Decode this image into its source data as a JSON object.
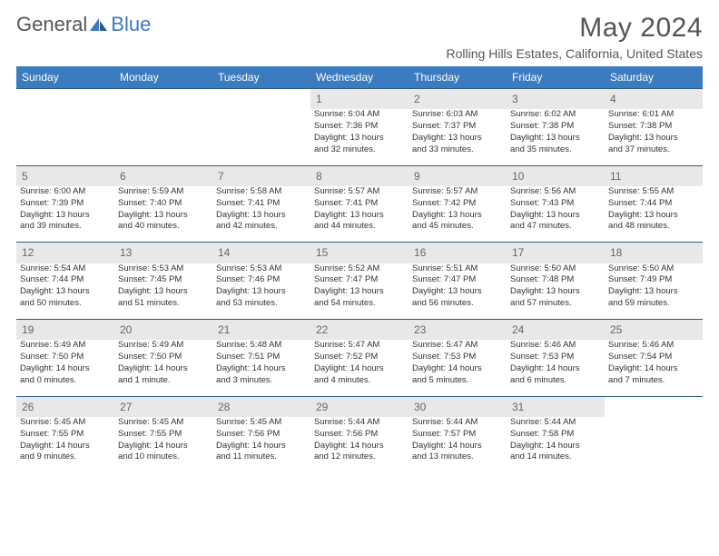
{
  "logo": {
    "part1": "General",
    "part2": "Blue"
  },
  "title": "May 2024",
  "location": "Rolling Hills Estates, California, United States",
  "colors": {
    "header_bg": "#3b7bbf",
    "header_text": "#ffffff",
    "daynum_bg": "#e8e8e8",
    "border": "#2a5a8a",
    "text": "#333333",
    "title_text": "#555555"
  },
  "day_headers": [
    "Sunday",
    "Monday",
    "Tuesday",
    "Wednesday",
    "Thursday",
    "Friday",
    "Saturday"
  ],
  "weeks": [
    {
      "nums": [
        "",
        "",
        "",
        "1",
        "2",
        "3",
        "4"
      ],
      "cells": [
        null,
        null,
        null,
        {
          "sr": "Sunrise: 6:04 AM",
          "ss": "Sunset: 7:36 PM",
          "d1": "Daylight: 13 hours",
          "d2": "and 32 minutes."
        },
        {
          "sr": "Sunrise: 6:03 AM",
          "ss": "Sunset: 7:37 PM",
          "d1": "Daylight: 13 hours",
          "d2": "and 33 minutes."
        },
        {
          "sr": "Sunrise: 6:02 AM",
          "ss": "Sunset: 7:38 PM",
          "d1": "Daylight: 13 hours",
          "d2": "and 35 minutes."
        },
        {
          "sr": "Sunrise: 6:01 AM",
          "ss": "Sunset: 7:38 PM",
          "d1": "Daylight: 13 hours",
          "d2": "and 37 minutes."
        }
      ]
    },
    {
      "nums": [
        "5",
        "6",
        "7",
        "8",
        "9",
        "10",
        "11"
      ],
      "cells": [
        {
          "sr": "Sunrise: 6:00 AM",
          "ss": "Sunset: 7:39 PM",
          "d1": "Daylight: 13 hours",
          "d2": "and 39 minutes."
        },
        {
          "sr": "Sunrise: 5:59 AM",
          "ss": "Sunset: 7:40 PM",
          "d1": "Daylight: 13 hours",
          "d2": "and 40 minutes."
        },
        {
          "sr": "Sunrise: 5:58 AM",
          "ss": "Sunset: 7:41 PM",
          "d1": "Daylight: 13 hours",
          "d2": "and 42 minutes."
        },
        {
          "sr": "Sunrise: 5:57 AM",
          "ss": "Sunset: 7:41 PM",
          "d1": "Daylight: 13 hours",
          "d2": "and 44 minutes."
        },
        {
          "sr": "Sunrise: 5:57 AM",
          "ss": "Sunset: 7:42 PM",
          "d1": "Daylight: 13 hours",
          "d2": "and 45 minutes."
        },
        {
          "sr": "Sunrise: 5:56 AM",
          "ss": "Sunset: 7:43 PM",
          "d1": "Daylight: 13 hours",
          "d2": "and 47 minutes."
        },
        {
          "sr": "Sunrise: 5:55 AM",
          "ss": "Sunset: 7:44 PM",
          "d1": "Daylight: 13 hours",
          "d2": "and 48 minutes."
        }
      ]
    },
    {
      "nums": [
        "12",
        "13",
        "14",
        "15",
        "16",
        "17",
        "18"
      ],
      "cells": [
        {
          "sr": "Sunrise: 5:54 AM",
          "ss": "Sunset: 7:44 PM",
          "d1": "Daylight: 13 hours",
          "d2": "and 50 minutes."
        },
        {
          "sr": "Sunrise: 5:53 AM",
          "ss": "Sunset: 7:45 PM",
          "d1": "Daylight: 13 hours",
          "d2": "and 51 minutes."
        },
        {
          "sr": "Sunrise: 5:53 AM",
          "ss": "Sunset: 7:46 PM",
          "d1": "Daylight: 13 hours",
          "d2": "and 53 minutes."
        },
        {
          "sr": "Sunrise: 5:52 AM",
          "ss": "Sunset: 7:47 PM",
          "d1": "Daylight: 13 hours",
          "d2": "and 54 minutes."
        },
        {
          "sr": "Sunrise: 5:51 AM",
          "ss": "Sunset: 7:47 PM",
          "d1": "Daylight: 13 hours",
          "d2": "and 56 minutes."
        },
        {
          "sr": "Sunrise: 5:50 AM",
          "ss": "Sunset: 7:48 PM",
          "d1": "Daylight: 13 hours",
          "d2": "and 57 minutes."
        },
        {
          "sr": "Sunrise: 5:50 AM",
          "ss": "Sunset: 7:49 PM",
          "d1": "Daylight: 13 hours",
          "d2": "and 59 minutes."
        }
      ]
    },
    {
      "nums": [
        "19",
        "20",
        "21",
        "22",
        "23",
        "24",
        "25"
      ],
      "cells": [
        {
          "sr": "Sunrise: 5:49 AM",
          "ss": "Sunset: 7:50 PM",
          "d1": "Daylight: 14 hours",
          "d2": "and 0 minutes."
        },
        {
          "sr": "Sunrise: 5:49 AM",
          "ss": "Sunset: 7:50 PM",
          "d1": "Daylight: 14 hours",
          "d2": "and 1 minute."
        },
        {
          "sr": "Sunrise: 5:48 AM",
          "ss": "Sunset: 7:51 PM",
          "d1": "Daylight: 14 hours",
          "d2": "and 3 minutes."
        },
        {
          "sr": "Sunrise: 5:47 AM",
          "ss": "Sunset: 7:52 PM",
          "d1": "Daylight: 14 hours",
          "d2": "and 4 minutes."
        },
        {
          "sr": "Sunrise: 5:47 AM",
          "ss": "Sunset: 7:53 PM",
          "d1": "Daylight: 14 hours",
          "d2": "and 5 minutes."
        },
        {
          "sr": "Sunrise: 5:46 AM",
          "ss": "Sunset: 7:53 PM",
          "d1": "Daylight: 14 hours",
          "d2": "and 6 minutes."
        },
        {
          "sr": "Sunrise: 5:46 AM",
          "ss": "Sunset: 7:54 PM",
          "d1": "Daylight: 14 hours",
          "d2": "and 7 minutes."
        }
      ]
    },
    {
      "nums": [
        "26",
        "27",
        "28",
        "29",
        "30",
        "31",
        ""
      ],
      "cells": [
        {
          "sr": "Sunrise: 5:45 AM",
          "ss": "Sunset: 7:55 PM",
          "d1": "Daylight: 14 hours",
          "d2": "and 9 minutes."
        },
        {
          "sr": "Sunrise: 5:45 AM",
          "ss": "Sunset: 7:55 PM",
          "d1": "Daylight: 14 hours",
          "d2": "and 10 minutes."
        },
        {
          "sr": "Sunrise: 5:45 AM",
          "ss": "Sunset: 7:56 PM",
          "d1": "Daylight: 14 hours",
          "d2": "and 11 minutes."
        },
        {
          "sr": "Sunrise: 5:44 AM",
          "ss": "Sunset: 7:56 PM",
          "d1": "Daylight: 14 hours",
          "d2": "and 12 minutes."
        },
        {
          "sr": "Sunrise: 5:44 AM",
          "ss": "Sunset: 7:57 PM",
          "d1": "Daylight: 14 hours",
          "d2": "and 13 minutes."
        },
        {
          "sr": "Sunrise: 5:44 AM",
          "ss": "Sunset: 7:58 PM",
          "d1": "Daylight: 14 hours",
          "d2": "and 14 minutes."
        },
        null
      ]
    }
  ]
}
